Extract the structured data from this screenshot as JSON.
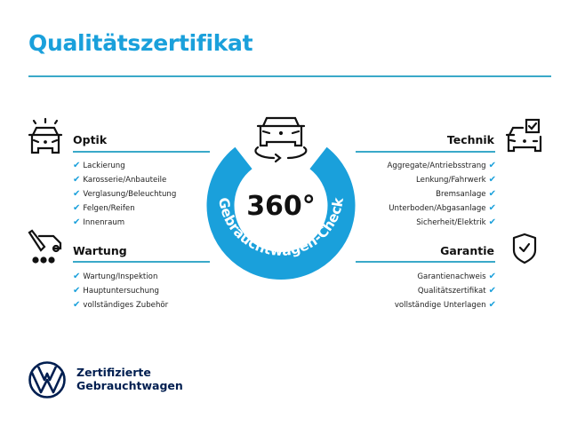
{
  "title": "Qualitätszertifikat",
  "colors": {
    "accent": "#1aa0db",
    "line": "#3aa9c9",
    "brand": "#001e50"
  },
  "center": {
    "big_text": "360°",
    "ring_text": "Gebrauchtwagen-Check",
    "icon": "car-rotate-icon"
  },
  "sections": {
    "optik": {
      "title": "Optik",
      "icon": "car-lights-icon",
      "items": [
        "Lackierung",
        "Karosserie/Anbauteile",
        "Verglasung/Beleuchtung",
        "Felgen/Reifen",
        "Innenraum"
      ]
    },
    "wartung": {
      "title": "Wartung",
      "icon": "service-tools-icon",
      "items": [
        "Wartung/Inspektion",
        "Hauptuntersuchung",
        "vollständiges Zubehör"
      ]
    },
    "technik": {
      "title": "Technik",
      "icon": "car-checkbox-icon",
      "items": [
        "Aggregate/Antriebsstrang",
        "Lenkung/Fahrwerk",
        "Bremsanlage",
        "Unterboden/Abgasanlage",
        "Sicherheit/Elektrik"
      ]
    },
    "garantie": {
      "title": "Garantie",
      "icon": "shield-check-icon",
      "items": [
        "Garantienachweis",
        "Qualitätszertifikat",
        "vollständige Unterlagen"
      ]
    }
  },
  "check_glyph": "✔",
  "brand": {
    "line1": "Zertifizierte",
    "line2": "Gebrauchtwagen",
    "logo": "vw-logo"
  }
}
